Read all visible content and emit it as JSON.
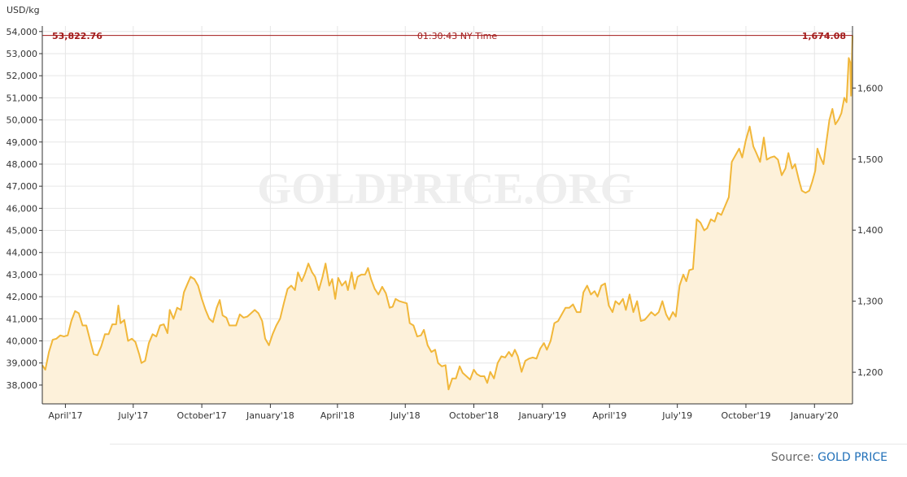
{
  "colors": {
    "line": "#f1b73a",
    "fill": "#fdf1da",
    "current_line": "#a31a1a",
    "current_text": "#a31a1a",
    "grid": "#e6e6e6",
    "axis": "#333333",
    "watermark": "#eeeeee",
    "source_link": "#1f6fb8"
  },
  "header": {
    "left_value": "53,822.76",
    "time": "01:30:43 NY Time",
    "right_value": "1,674.08"
  },
  "watermark": "GOLDPRICE.ORG",
  "source": {
    "label": "Source:",
    "link": "GOLD PRICE"
  },
  "chart_data": {
    "type": "area",
    "ylabel": "USD/kg",
    "y_left": {
      "ticks": [
        "38,000",
        "39,000",
        "40,000",
        "41,000",
        "42,000",
        "43,000",
        "44,000",
        "45,000",
        "46,000",
        "47,000",
        "48,000",
        "49,000",
        "50,000",
        "51,000",
        "52,000",
        "53,000",
        "54,000"
      ],
      "values": [
        38000,
        39000,
        40000,
        41000,
        42000,
        43000,
        44000,
        45000,
        46000,
        47000,
        48000,
        49000,
        50000,
        51000,
        52000,
        53000,
        54000
      ],
      "ylim": [
        37150,
        54250
      ]
    },
    "y_right": {
      "ticks": [
        "1,200",
        "1,300",
        "1,400",
        "1,500",
        "1,600"
      ],
      "values": [
        1200,
        1300,
        1400,
        1500,
        1600
      ],
      "ylim": [
        1155.5,
        1687.3
      ]
    },
    "x_ticks": [
      "April'17",
      "July'17",
      "October'17",
      "January'18",
      "April'18",
      "July'18",
      "October'18",
      "January'19",
      "April'19",
      "July'19",
      "October'19",
      "January'20"
    ],
    "x_tick_dates": [
      "2017-04-01",
      "2017-07-01",
      "2017-10-01",
      "2018-01-01",
      "2018-04-01",
      "2018-07-01",
      "2018-10-01",
      "2019-01-01",
      "2019-04-01",
      "2019-07-01",
      "2019-10-01",
      "2020-01-01"
    ],
    "xlim": [
      "2017-03-01",
      "2020-02-21"
    ],
    "grid": true,
    "current_value": 53822.76,
    "series": [
      {
        "points": [
          [
            "2017-03-01",
            38900
          ],
          [
            "2017-03-05",
            38700
          ],
          [
            "2017-03-10",
            39500
          ],
          [
            "2017-03-15",
            40050
          ],
          [
            "2017-03-20",
            40100
          ],
          [
            "2017-03-25",
            40250
          ],
          [
            "2017-03-30",
            40200
          ],
          [
            "2017-04-04",
            40250
          ],
          [
            "2017-04-09",
            40900
          ],
          [
            "2017-04-14",
            41350
          ],
          [
            "2017-04-19",
            41250
          ],
          [
            "2017-04-24",
            40700
          ],
          [
            "2017-04-29",
            40700
          ],
          [
            "2017-05-04",
            40050
          ],
          [
            "2017-05-09",
            39400
          ],
          [
            "2017-05-14",
            39350
          ],
          [
            "2017-05-19",
            39750
          ],
          [
            "2017-05-24",
            40300
          ],
          [
            "2017-05-29",
            40300
          ],
          [
            "2017-06-03",
            40750
          ],
          [
            "2017-06-08",
            40750
          ],
          [
            "2017-06-11",
            41600
          ],
          [
            "2017-06-14",
            40800
          ],
          [
            "2017-06-19",
            40950
          ],
          [
            "2017-06-24",
            40000
          ],
          [
            "2017-06-29",
            40100
          ],
          [
            "2017-07-04",
            39950
          ],
          [
            "2017-07-09",
            39400
          ],
          [
            "2017-07-12",
            39000
          ],
          [
            "2017-07-17",
            39100
          ],
          [
            "2017-07-22",
            39900
          ],
          [
            "2017-07-27",
            40300
          ],
          [
            "2017-08-01",
            40200
          ],
          [
            "2017-08-06",
            40700
          ],
          [
            "2017-08-11",
            40750
          ],
          [
            "2017-08-16",
            40350
          ],
          [
            "2017-08-19",
            41400
          ],
          [
            "2017-08-24",
            41000
          ],
          [
            "2017-08-29",
            41500
          ],
          [
            "2017-09-03",
            41400
          ],
          [
            "2017-09-07",
            42200
          ],
          [
            "2017-09-12",
            42600
          ],
          [
            "2017-09-16",
            42900
          ],
          [
            "2017-09-21",
            42800
          ],
          [
            "2017-09-26",
            42500
          ],
          [
            "2017-10-01",
            41900
          ],
          [
            "2017-10-06",
            41400
          ],
          [
            "2017-10-11",
            41000
          ],
          [
            "2017-10-16",
            40850
          ],
          [
            "2017-10-21",
            41500
          ],
          [
            "2017-10-25",
            41850
          ],
          [
            "2017-10-29",
            41150
          ],
          [
            "2017-11-03",
            41050
          ],
          [
            "2017-11-07",
            40700
          ],
          [
            "2017-11-12",
            40700
          ],
          [
            "2017-11-16",
            40700
          ],
          [
            "2017-11-21",
            41200
          ],
          [
            "2017-11-26",
            41050
          ],
          [
            "2017-12-01",
            41100
          ],
          [
            "2017-12-06",
            41250
          ],
          [
            "2017-12-11",
            41400
          ],
          [
            "2017-12-16",
            41250
          ],
          [
            "2017-12-21",
            40900
          ],
          [
            "2017-12-25",
            40100
          ],
          [
            "2017-12-30",
            39800
          ],
          [
            "2018-01-04",
            40300
          ],
          [
            "2018-01-09",
            40700
          ],
          [
            "2018-01-14",
            41000
          ],
          [
            "2018-01-19",
            41700
          ],
          [
            "2018-01-24",
            42350
          ],
          [
            "2018-01-29",
            42500
          ],
          [
            "2018-02-03",
            42300
          ],
          [
            "2018-02-07",
            43100
          ],
          [
            "2018-02-12",
            42700
          ],
          [
            "2018-02-16",
            43000
          ],
          [
            "2018-02-21",
            43500
          ],
          [
            "2018-02-26",
            43100
          ],
          [
            "2018-03-02",
            42900
          ],
          [
            "2018-03-07",
            42300
          ],
          [
            "2018-03-12",
            42900
          ],
          [
            "2018-03-16",
            43500
          ],
          [
            "2018-03-21",
            42500
          ],
          [
            "2018-03-25",
            42800
          ],
          [
            "2018-03-29",
            41900
          ],
          [
            "2018-04-02",
            42850
          ],
          [
            "2018-04-07",
            42500
          ],
          [
            "2018-04-12",
            42700
          ],
          [
            "2018-04-15",
            42300
          ],
          [
            "2018-04-20",
            43100
          ],
          [
            "2018-04-24",
            42350
          ],
          [
            "2018-04-28",
            42900
          ],
          [
            "2018-05-03",
            43000
          ],
          [
            "2018-05-08",
            43000
          ],
          [
            "2018-05-12",
            43300
          ],
          [
            "2018-05-16",
            42800
          ],
          [
            "2018-05-21",
            42350
          ],
          [
            "2018-05-26",
            42100
          ],
          [
            "2018-05-31",
            42450
          ],
          [
            "2018-06-05",
            42150
          ],
          [
            "2018-06-10",
            41500
          ],
          [
            "2018-06-14",
            41550
          ],
          [
            "2018-06-18",
            41900
          ],
          [
            "2018-06-23",
            41800
          ],
          [
            "2018-06-28",
            41750
          ],
          [
            "2018-07-03",
            41700
          ],
          [
            "2018-07-07",
            40800
          ],
          [
            "2018-07-12",
            40700
          ],
          [
            "2018-07-17",
            40200
          ],
          [
            "2018-07-22",
            40250
          ],
          [
            "2018-07-26",
            40500
          ],
          [
            "2018-07-31",
            39800
          ],
          [
            "2018-08-05",
            39500
          ],
          [
            "2018-08-10",
            39600
          ],
          [
            "2018-08-14",
            39000
          ],
          [
            "2018-08-19",
            38850
          ],
          [
            "2018-08-24",
            38900
          ],
          [
            "2018-08-28",
            37800
          ],
          [
            "2018-09-02",
            38300
          ],
          [
            "2018-09-07",
            38300
          ],
          [
            "2018-09-12",
            38850
          ],
          [
            "2018-09-16",
            38550
          ],
          [
            "2018-09-21",
            38400
          ],
          [
            "2018-09-26",
            38250
          ],
          [
            "2018-10-01",
            38700
          ],
          [
            "2018-10-05",
            38500
          ],
          [
            "2018-10-10",
            38400
          ],
          [
            "2018-10-15",
            38400
          ],
          [
            "2018-10-19",
            38100
          ],
          [
            "2018-10-23",
            38600
          ],
          [
            "2018-10-28",
            38300
          ],
          [
            "2018-11-02",
            39000
          ],
          [
            "2018-11-07",
            39300
          ],
          [
            "2018-11-12",
            39250
          ],
          [
            "2018-11-17",
            39500
          ],
          [
            "2018-11-21",
            39300
          ],
          [
            "2018-11-25",
            39600
          ],
          [
            "2018-11-29",
            39300
          ],
          [
            "2018-12-04",
            38600
          ],
          [
            "2018-12-09",
            39100
          ],
          [
            "2018-12-14",
            39200
          ],
          [
            "2018-12-19",
            39250
          ],
          [
            "2018-12-24",
            39200
          ],
          [
            "2018-12-29",
            39650
          ],
          [
            "2019-01-03",
            39900
          ],
          [
            "2019-01-07",
            39600
          ],
          [
            "2019-01-12",
            40000
          ],
          [
            "2019-01-17",
            40800
          ],
          [
            "2019-01-22",
            40900
          ],
          [
            "2019-01-27",
            41200
          ],
          [
            "2019-02-01",
            41500
          ],
          [
            "2019-02-06",
            41500
          ],
          [
            "2019-02-11",
            41650
          ],
          [
            "2019-02-16",
            41300
          ],
          [
            "2019-02-21",
            41300
          ],
          [
            "2019-02-25",
            42200
          ],
          [
            "2019-03-02",
            42500
          ],
          [
            "2019-03-07",
            42100
          ],
          [
            "2019-03-12",
            42250
          ],
          [
            "2019-03-16",
            42000
          ],
          [
            "2019-03-21",
            42500
          ],
          [
            "2019-03-26",
            42600
          ],
          [
            "2019-03-31",
            41600
          ],
          [
            "2019-04-05",
            41300
          ],
          [
            "2019-04-09",
            41800
          ],
          [
            "2019-04-14",
            41650
          ],
          [
            "2019-04-19",
            41900
          ],
          [
            "2019-04-23",
            41400
          ],
          [
            "2019-04-28",
            42100
          ],
          [
            "2019-05-03",
            41300
          ],
          [
            "2019-05-08",
            41800
          ],
          [
            "2019-05-13",
            40900
          ],
          [
            "2019-05-18",
            40950
          ],
          [
            "2019-05-22",
            41100
          ],
          [
            "2019-05-27",
            41300
          ],
          [
            "2019-06-01",
            41150
          ],
          [
            "2019-06-06",
            41300
          ],
          [
            "2019-06-11",
            41800
          ],
          [
            "2019-06-16",
            41200
          ],
          [
            "2019-06-20",
            40950
          ],
          [
            "2019-06-25",
            41300
          ],
          [
            "2019-06-29",
            41100
          ],
          [
            "2019-07-04",
            42500
          ],
          [
            "2019-07-09",
            43000
          ],
          [
            "2019-07-13",
            42700
          ],
          [
            "2019-07-17",
            43200
          ],
          [
            "2019-07-22",
            43250
          ],
          [
            "2019-07-27",
            45500
          ],
          [
            "2019-08-01",
            45350
          ],
          [
            "2019-08-06",
            45000
          ],
          [
            "2019-08-10",
            45100
          ],
          [
            "2019-08-15",
            45500
          ],
          [
            "2019-08-20",
            45400
          ],
          [
            "2019-08-24",
            45800
          ],
          [
            "2019-08-29",
            45700
          ],
          [
            "2019-09-03",
            46100
          ],
          [
            "2019-09-08",
            46500
          ],
          [
            "2019-09-12",
            48100
          ],
          [
            "2019-09-17",
            48400
          ],
          [
            "2019-09-22",
            48700
          ],
          [
            "2019-09-26",
            48300
          ],
          [
            "2019-10-01",
            49100
          ],
          [
            "2019-10-06",
            49700
          ],
          [
            "2019-10-11",
            48800
          ],
          [
            "2019-10-15",
            48500
          ],
          [
            "2019-10-20",
            48100
          ],
          [
            "2019-10-25",
            49200
          ],
          [
            "2019-10-29",
            48200
          ],
          [
            "2019-11-03",
            48300
          ],
          [
            "2019-11-08",
            48350
          ],
          [
            "2019-11-13",
            48200
          ],
          [
            "2019-11-18",
            47500
          ],
          [
            "2019-11-23",
            47800
          ],
          [
            "2019-11-27",
            48500
          ],
          [
            "2019-12-02",
            47800
          ],
          [
            "2019-12-06",
            48000
          ],
          [
            "2019-12-11",
            47300
          ],
          [
            "2019-12-15",
            46800
          ],
          [
            "2019-12-20",
            46700
          ],
          [
            "2019-12-25",
            46800
          ],
          [
            "2019-12-29",
            47200
          ],
          [
            "2020-01-02",
            47700
          ],
          [
            "2020-01-05",
            48700
          ],
          [
            "2020-01-09",
            48300
          ],
          [
            "2020-01-13",
            48000
          ],
          [
            "2020-01-17",
            49000
          ],
          [
            "2020-01-21",
            50000
          ],
          [
            "2020-01-25",
            50500
          ],
          [
            "2020-01-29",
            49800
          ],
          [
            "2020-02-02",
            50000
          ],
          [
            "2020-02-06",
            50300
          ],
          [
            "2020-02-10",
            51000
          ],
          [
            "2020-02-13",
            50800
          ],
          [
            "2020-02-16",
            52800
          ],
          [
            "2020-02-18",
            52600
          ],
          [
            "2020-02-19",
            51100
          ],
          [
            "2020-02-21",
            53822.76
          ]
        ]
      }
    ]
  }
}
